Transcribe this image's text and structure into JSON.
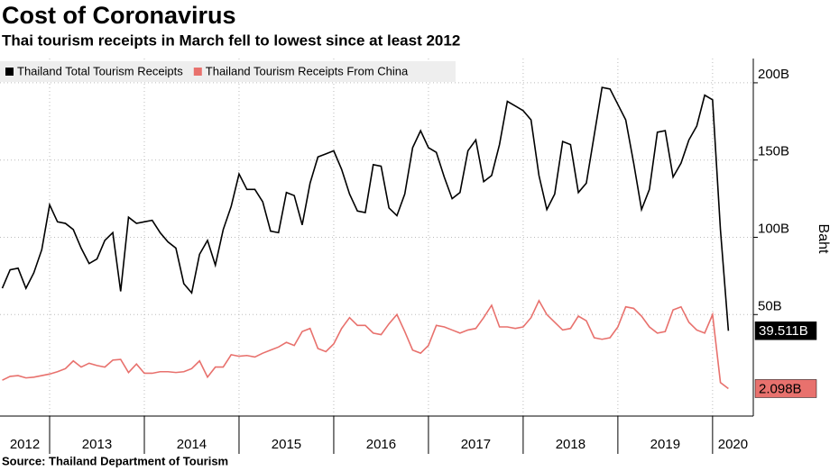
{
  "chart_data": {
    "type": "line",
    "title": "Cost of Coronavirus",
    "subtitle": "Thai tourism receipts in March fell to lowest since at least 2012",
    "source": "Source: Thailand Department of Tourism",
    "y_label": "Baht",
    "xlim": [
      2012.476,
      2020.43
    ],
    "xticks": [
      2012,
      2013,
      2014,
      2015,
      2016,
      2017,
      2018,
      2019,
      2020
    ],
    "ylim": [
      -15.7,
      215.7
    ],
    "yticks": [
      {
        "value": 50,
        "label": "50B"
      },
      {
        "value": 100,
        "label": "100B"
      },
      {
        "value": 150,
        "label": "150B"
      },
      {
        "value": 200,
        "label": "200B"
      }
    ],
    "grid": true,
    "legend": "top-left",
    "x": [
      2012.5,
      2012.583,
      2012.667,
      2012.75,
      2012.833,
      2012.917,
      2013,
      2013.083,
      2013.167,
      2013.25,
      2013.333,
      2013.417,
      2013.5,
      2013.583,
      2013.667,
      2013.75,
      2013.833,
      2013.917,
      2014,
      2014.083,
      2014.167,
      2014.25,
      2014.333,
      2014.417,
      2014.5,
      2014.583,
      2014.667,
      2014.75,
      2014.833,
      2014.917,
      2015,
      2015.083,
      2015.167,
      2015.25,
      2015.333,
      2015.417,
      2015.5,
      2015.583,
      2015.667,
      2015.75,
      2015.833,
      2015.917,
      2016,
      2016.083,
      2016.167,
      2016.25,
      2016.333,
      2016.417,
      2016.5,
      2016.583,
      2016.667,
      2016.75,
      2016.833,
      2016.917,
      2017,
      2017.083,
      2017.167,
      2017.25,
      2017.333,
      2017.417,
      2017.5,
      2017.583,
      2017.667,
      2017.75,
      2017.833,
      2017.917,
      2018,
      2018.083,
      2018.167,
      2018.25,
      2018.333,
      2018.417,
      2018.5,
      2018.583,
      2018.667,
      2018.75,
      2018.833,
      2018.917,
      2019,
      2019.083,
      2019.167,
      2019.25,
      2019.333,
      2019.417,
      2019.5,
      2019.583,
      2019.667,
      2019.75,
      2019.833,
      2019.917,
      2020,
      2020.083,
      2020.167
    ],
    "series": [
      {
        "name": "Thailand Total Tourism Receipts",
        "color": "#000000",
        "values": [
          67,
          79,
          80,
          67,
          77,
          92,
          121,
          110,
          109,
          105,
          93,
          83,
          86,
          98,
          103,
          65,
          113,
          109,
          110,
          111,
          103,
          97,
          93,
          70,
          64,
          89,
          98,
          82,
          105,
          120,
          141,
          131,
          131,
          123,
          104,
          103,
          129,
          127,
          108,
          135,
          152,
          154,
          156,
          144,
          128,
          117,
          116,
          147,
          146,
          119,
          114,
          128,
          158,
          169,
          158,
          155,
          139,
          125,
          129,
          156,
          163,
          136,
          140,
          160,
          188,
          185,
          182,
          176,
          140,
          118,
          128,
          162,
          160,
          129,
          135,
          166,
          197,
          196,
          186,
          176,
          148,
          118,
          131,
          168,
          169,
          139,
          148,
          163,
          172,
          192,
          189,
          105,
          39.511
        ],
        "value_labels": [
          null,
          null,
          null,
          null,
          null,
          null,
          null,
          null,
          null,
          null,
          null,
          null,
          null,
          null,
          null,
          null,
          null,
          null,
          null,
          null,
          null,
          null,
          null,
          null,
          null,
          null,
          null,
          null,
          null,
          null,
          null,
          null,
          null,
          null,
          null,
          null,
          null,
          null,
          null,
          null,
          null,
          null,
          null,
          null,
          null,
          null,
          null,
          null,
          null,
          null,
          null,
          null,
          null,
          null,
          null,
          null,
          null,
          null,
          null,
          null,
          null,
          null,
          null,
          null,
          null,
          null,
          null,
          null,
          null,
          null,
          null,
          null,
          null,
          null,
          null,
          null,
          null,
          null,
          null,
          null,
          null,
          null,
          null,
          null,
          null,
          null,
          null,
          null,
          null,
          null,
          null,
          null,
          "39.511B"
        ]
      },
      {
        "name": "Thailand Tourism Receipts From China",
        "color": "#e8716d",
        "values": [
          7.5,
          10,
          10.5,
          9,
          9.5,
          10.5,
          11.5,
          13,
          15,
          20,
          16,
          18.5,
          17,
          16,
          20.5,
          21,
          12.5,
          18,
          12,
          12,
          13,
          13,
          12.5,
          13,
          15,
          20,
          9.5,
          16,
          16,
          24,
          23,
          23.5,
          22.5,
          25,
          27,
          29,
          32,
          30,
          39,
          41,
          28,
          26,
          31,
          41,
          48,
          43,
          43,
          38,
          37,
          44,
          50,
          39,
          27,
          25,
          30,
          43,
          42,
          40,
          38,
          40,
          41,
          48,
          56,
          42,
          42,
          41,
          42,
          48,
          59,
          50,
          45,
          40,
          41,
          49,
          46,
          35,
          34,
          35,
          42,
          55,
          54,
          49,
          42,
          38,
          39,
          53,
          55,
          45,
          40,
          38,
          50,
          6,
          2.098
        ],
        "value_labels": [
          null,
          null,
          null,
          null,
          null,
          null,
          null,
          null,
          null,
          null,
          null,
          null,
          null,
          null,
          null,
          null,
          null,
          null,
          null,
          null,
          null,
          null,
          null,
          null,
          null,
          null,
          null,
          null,
          null,
          null,
          null,
          null,
          null,
          null,
          null,
          null,
          null,
          null,
          null,
          null,
          null,
          null,
          null,
          null,
          null,
          null,
          null,
          null,
          null,
          null,
          null,
          null,
          null,
          null,
          null,
          null,
          null,
          null,
          null,
          null,
          null,
          null,
          null,
          null,
          null,
          null,
          null,
          null,
          null,
          null,
          null,
          null,
          null,
          null,
          null,
          null,
          null,
          null,
          null,
          null,
          null,
          null,
          null,
          null,
          null,
          null,
          null,
          null,
          null,
          null,
          null,
          null,
          "2.098B"
        ]
      }
    ]
  }
}
